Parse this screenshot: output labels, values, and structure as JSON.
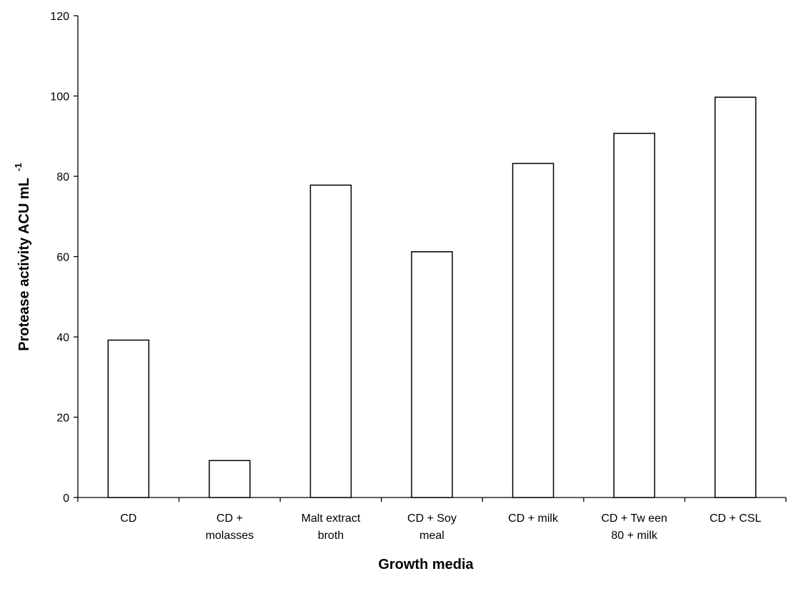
{
  "chart_data": {
    "type": "bar",
    "categories": [
      [
        "CD"
      ],
      [
        "CD +",
        "molasses"
      ],
      [
        "Malt extract",
        "broth"
      ],
      [
        "CD + Soy",
        "meal"
      ],
      [
        "CD + milk"
      ],
      [
        "CD + Tw een",
        "80 + milk"
      ],
      [
        "CD + CSL"
      ]
    ],
    "values": [
      39.2,
      9.2,
      77.8,
      61.2,
      83.2,
      90.7,
      99.7
    ],
    "xlabel": "Growth media",
    "ylabel": "Protease activity ACU mL",
    "ylabel_superscript": "-1",
    "ylim": [
      0,
      120
    ],
    "yticks": [
      "0",
      "20",
      "40",
      "60",
      "80",
      "100",
      "120"
    ],
    "grid": false,
    "legend": "none",
    "bar_fill": "#ffffff",
    "bar_stroke": "#000000"
  }
}
